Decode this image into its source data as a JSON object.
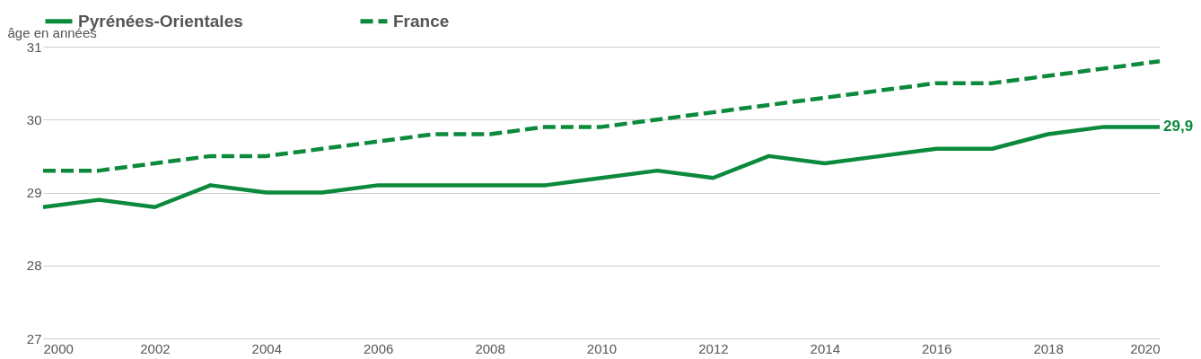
{
  "chart_data": {
    "type": "line",
    "ylabel": "âge en années",
    "x": [
      2000,
      2001,
      2002,
      2003,
      2004,
      2005,
      2006,
      2007,
      2008,
      2009,
      2010,
      2011,
      2012,
      2013,
      2014,
      2015,
      2016,
      2017,
      2018,
      2019,
      2020
    ],
    "series": [
      {
        "name": "Pyrénées-Orientales",
        "color": "#0b8a3c",
        "line_style": "solid",
        "values": [
          28.8,
          28.9,
          28.8,
          29.1,
          29.0,
          29.0,
          29.1,
          29.1,
          29.1,
          29.1,
          29.2,
          29.3,
          29.2,
          29.5,
          29.4,
          29.5,
          29.6,
          29.6,
          29.8,
          29.9,
          29.9
        ]
      },
      {
        "name": "France",
        "color": "#0b8a3c",
        "line_style": "dashed",
        "values": [
          29.3,
          29.3,
          29.4,
          29.5,
          29.5,
          29.6,
          29.7,
          29.8,
          29.8,
          29.9,
          29.9,
          30.0,
          30.1,
          30.2,
          30.3,
          30.4,
          30.5,
          30.5,
          30.6,
          30.7,
          30.8
        ]
      }
    ],
    "annotations": [
      {
        "text": "29,9",
        "x": 2020,
        "y": 29.9
      }
    ],
    "xlim": [
      2000,
      2020
    ],
    "xticks": [
      2000,
      2002,
      2004,
      2006,
      2008,
      2010,
      2012,
      2014,
      2016,
      2018,
      2020
    ],
    "ylim": [
      27,
      31
    ],
    "yticks": [
      27,
      28,
      29,
      30,
      31
    ],
    "grid": "y",
    "legend": "top",
    "marker": "none"
  }
}
